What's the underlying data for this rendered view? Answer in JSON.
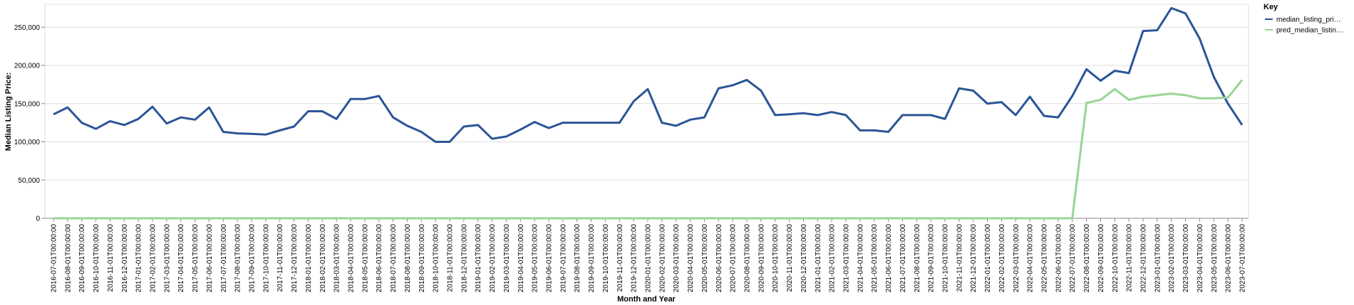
{
  "chart_data": {
    "type": "line",
    "x_label": "Month and Year",
    "y_label": "Median Listing Price:",
    "legend_title": "Key",
    "legend_position": "right",
    "grid": true,
    "categories": [
      "2016-07-01T00:00:00",
      "2016-08-01T00:00:00",
      "2016-09-01T00:00:00",
      "2016-10-01T00:00:00",
      "2016-11-01T00:00:00",
      "2016-12-01T00:00:00",
      "2017-01-01T00:00:00",
      "2017-02-01T00:00:00",
      "2017-03-01T00:00:00",
      "2017-04-01T00:00:00",
      "2017-05-01T00:00:00",
      "2017-06-01T00:00:00",
      "2017-07-01T00:00:00",
      "2017-08-01T00:00:00",
      "2017-09-01T00:00:00",
      "2017-10-01T00:00:00",
      "2017-11-01T00:00:00",
      "2017-12-01T00:00:00",
      "2018-01-01T00:00:00",
      "2018-02-01T00:00:00",
      "2018-03-01T00:00:00",
      "2018-04-01T00:00:00",
      "2018-05-01T00:00:00",
      "2018-06-01T00:00:00",
      "2018-07-01T00:00:00",
      "2018-08-01T00:00:00",
      "2018-09-01T00:00:00",
      "2018-10-01T00:00:00",
      "2018-11-01T00:00:00",
      "2018-12-01T00:00:00",
      "2019-01-01T00:00:00",
      "2019-02-01T00:00:00",
      "2019-03-01T00:00:00",
      "2019-04-01T00:00:00",
      "2019-05-01T00:00:00",
      "2019-06-01T00:00:00",
      "2019-07-01T00:00:00",
      "2019-08-01T00:00:00",
      "2019-09-01T00:00:00",
      "2019-10-01T00:00:00",
      "2019-11-01T00:00:00",
      "2019-12-01T00:00:00",
      "2020-01-01T00:00:00",
      "2020-02-01T00:00:00",
      "2020-03-01T00:00:00",
      "2020-04-01T00:00:00",
      "2020-05-01T00:00:00",
      "2020-06-01T00:00:00",
      "2020-07-01T00:00:00",
      "2020-08-01T00:00:00",
      "2020-09-01T00:00:00",
      "2020-10-01T00:00:00",
      "2020-11-01T00:00:00",
      "2020-12-01T00:00:00",
      "2021-01-01T00:00:00",
      "2021-02-01T00:00:00",
      "2021-03-01T00:00:00",
      "2021-04-01T00:00:00",
      "2021-05-01T00:00:00",
      "2021-06-01T00:00:00",
      "2021-07-01T00:00:00",
      "2021-08-01T00:00:00",
      "2021-09-01T00:00:00",
      "2021-10-01T00:00:00",
      "2021-11-01T00:00:00",
      "2021-12-01T00:00:00",
      "2022-01-01T00:00:00",
      "2022-02-01T00:00:00",
      "2022-03-01T00:00:00",
      "2022-04-01T00:00:00",
      "2022-05-01T00:00:00",
      "2022-06-01T00:00:00",
      "2022-07-01T00:00:00",
      "2022-08-01T00:00:00",
      "2022-09-01T00:00:00",
      "2022-10-01T00:00:00",
      "2022-11-01T00:00:00",
      "2022-12-01T00:00:00",
      "2023-01-01T00:00:00",
      "2023-02-01T00:00:00",
      "2023-03-01T00:00:00",
      "2023-04-01T00:00:00",
      "2023-05-01T00:00:00",
      "2023-06-01T00:00:00",
      "2023-07-01T00:00:00"
    ],
    "series": [
      {
        "name": "median_listing_pri…",
        "color": "#2b5597",
        "values": [
          136000,
          145000,
          125000,
          117000,
          127000,
          122000,
          130000,
          146000,
          124000,
          132000,
          129000,
          145000,
          113000,
          111000,
          110500,
          109500,
          115000,
          120000,
          140000,
          140000,
          130000,
          156000,
          156000,
          160000,
          132000,
          121000,
          113000,
          100000,
          100000,
          120000,
          122000,
          104000,
          107000,
          116000,
          126000,
          118000,
          125000,
          125000,
          125000,
          125000,
          125000,
          153000,
          169000,
          125000,
          121000,
          129000,
          132000,
          170000,
          174000,
          181000,
          167000,
          135000,
          136000,
          137500,
          135000,
          139000,
          135000,
          115000,
          115000,
          113000,
          135000,
          135000,
          135000,
          130000,
          170000,
          167000,
          150000,
          152000,
          135000,
          159000,
          134000,
          132000,
          160000,
          195000,
          180000,
          193000,
          190000,
          245000,
          246000,
          275000,
          268000,
          235000,
          185000,
          150000,
          122000
        ]
      },
      {
        "name": "pred_median_listin…",
        "color": "#98d594",
        "values": [
          0,
          0,
          0,
          0,
          0,
          0,
          0,
          0,
          0,
          0,
          0,
          0,
          0,
          0,
          0,
          0,
          0,
          0,
          0,
          0,
          0,
          0,
          0,
          0,
          0,
          0,
          0,
          0,
          0,
          0,
          0,
          0,
          0,
          0,
          0,
          0,
          0,
          0,
          0,
          0,
          0,
          0,
          0,
          0,
          0,
          0,
          0,
          0,
          0,
          0,
          0,
          0,
          0,
          0,
          0,
          0,
          0,
          0,
          0,
          0,
          0,
          0,
          0,
          0,
          0,
          0,
          0,
          0,
          0,
          0,
          0,
          0,
          0,
          151000,
          155000,
          169000,
          155000,
          159000,
          161000,
          163000,
          161000,
          157000,
          157000,
          158000,
          181000
        ]
      }
    ],
    "ylim": [
      0,
      280000
    ],
    "yticks": [
      0,
      {
        "value": 50000,
        "label": "50,000"
      },
      {
        "value": 100000,
        "label": "100,000"
      },
      {
        "value": 150000,
        "label": "150,000"
      },
      {
        "value": 200000,
        "label": "200,000"
      },
      {
        "value": 250000,
        "label": "250,000"
      }
    ]
  }
}
